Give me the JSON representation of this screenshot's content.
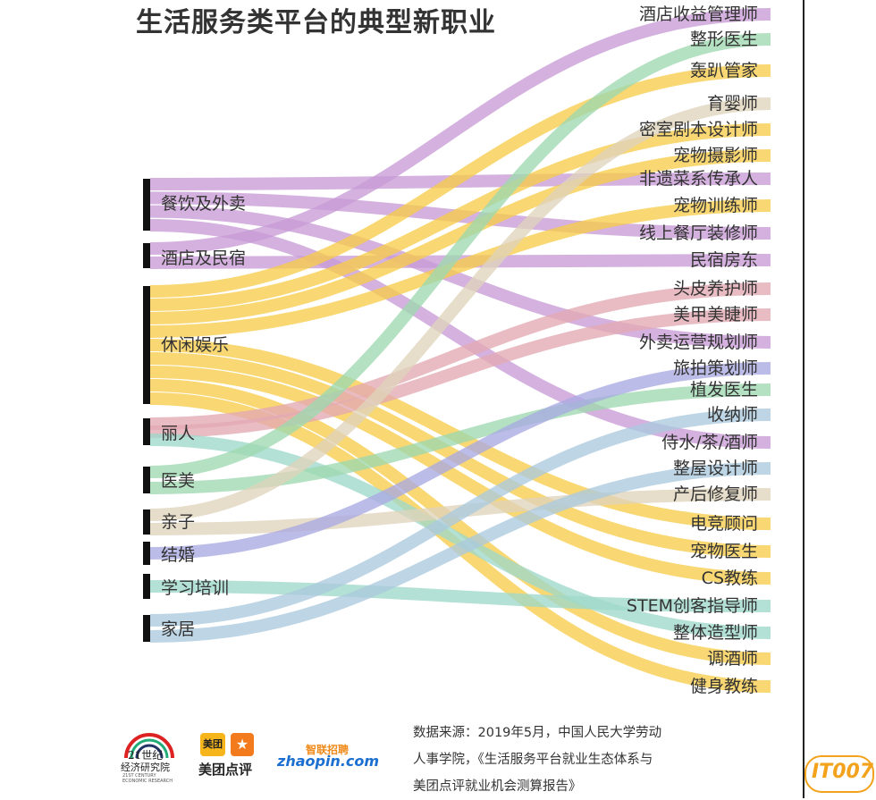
{
  "title": "生活服务类平台的典型新职业",
  "colors": {
    "purple": "#c89bd6",
    "yellow": "#f7cc4a",
    "green": "#9ed8b0",
    "tan": "#dfd3bb",
    "pink": "#e3a9b4",
    "blue": "#aac9de",
    "lavender": "#a9a9e3",
    "teal": "#9fd8c9",
    "bar": "#111111"
  },
  "categories": [
    {
      "label": "餐饮及外卖"
    },
    {
      "label": "酒店及民宿"
    },
    {
      "label": "休闲娱乐"
    },
    {
      "label": "丽人"
    },
    {
      "label": "医美"
    },
    {
      "label": "亲子"
    },
    {
      "label": "结婚"
    },
    {
      "label": "学习培训"
    },
    {
      "label": "家居"
    }
  ],
  "jobs": [
    "酒店收益管理师",
    "整形医生",
    "轰趴管家",
    "育婴师",
    "密室剧本设计师",
    "宠物摄影师",
    "非遗菜系传承人",
    "宠物训练师",
    "线上餐厅装修师",
    "民宿房东",
    "头皮养护师",
    "美甲美睫师",
    "外卖运营规划师",
    "旅拍策划师",
    "植发医生",
    "收纳师",
    "侍水/茶/酒师",
    "整屋设计师",
    "产后修复师",
    "电竞顾问",
    "宠物医生",
    "CS教练",
    "STEM创客指导师",
    "整体造型师",
    "调酒师",
    "健身教练"
  ],
  "links": [
    {
      "from": 0,
      "to": 6,
      "color": "purple"
    },
    {
      "from": 0,
      "to": 8,
      "color": "purple"
    },
    {
      "from": 0,
      "to": 12,
      "color": "purple"
    },
    {
      "from": 0,
      "to": 16,
      "color": "purple"
    },
    {
      "from": 1,
      "to": 0,
      "color": "purple"
    },
    {
      "from": 1,
      "to": 9,
      "color": "purple"
    },
    {
      "from": 2,
      "to": 2,
      "color": "yellow"
    },
    {
      "from": 2,
      "to": 4,
      "color": "yellow"
    },
    {
      "from": 2,
      "to": 5,
      "color": "yellow"
    },
    {
      "from": 2,
      "to": 7,
      "color": "yellow"
    },
    {
      "from": 2,
      "to": 19,
      "color": "yellow"
    },
    {
      "from": 2,
      "to": 20,
      "color": "yellow"
    },
    {
      "from": 2,
      "to": 21,
      "color": "yellow"
    },
    {
      "from": 2,
      "to": 24,
      "color": "yellow"
    },
    {
      "from": 2,
      "to": 25,
      "color": "yellow"
    },
    {
      "from": 3,
      "to": 10,
      "color": "pink"
    },
    {
      "from": 3,
      "to": 11,
      "color": "pink"
    },
    {
      "from": 3,
      "to": 23,
      "color": "teal"
    },
    {
      "from": 4,
      "to": 1,
      "color": "green"
    },
    {
      "from": 4,
      "to": 14,
      "color": "green"
    },
    {
      "from": 5,
      "to": 3,
      "color": "tan"
    },
    {
      "from": 5,
      "to": 18,
      "color": "tan"
    },
    {
      "from": 6,
      "to": 13,
      "color": "lavender"
    },
    {
      "from": 7,
      "to": 22,
      "color": "teal"
    },
    {
      "from": 8,
      "to": 15,
      "color": "blue"
    },
    {
      "from": 8,
      "to": 17,
      "color": "blue"
    }
  ],
  "footer": {
    "source_line1": "数据来源：2019年5月，中国人民大学劳动",
    "source_line2": "人事学院，《生活服务平台就业生态体系与",
    "source_line3": "美团点评就业机会测算报告》"
  },
  "logos": {
    "logo21_line1": "21世纪",
    "logo21_line2": "经济研究院",
    "logo21_line3": "21ST CENTURY ECONOMIC RESEARCH",
    "meituan_badge": "美团",
    "meituan_name": "美团点评",
    "zhaopin_cn": "智联招聘",
    "zhaopin_en": "zhaopin.com"
  },
  "watermark": "IT007"
}
